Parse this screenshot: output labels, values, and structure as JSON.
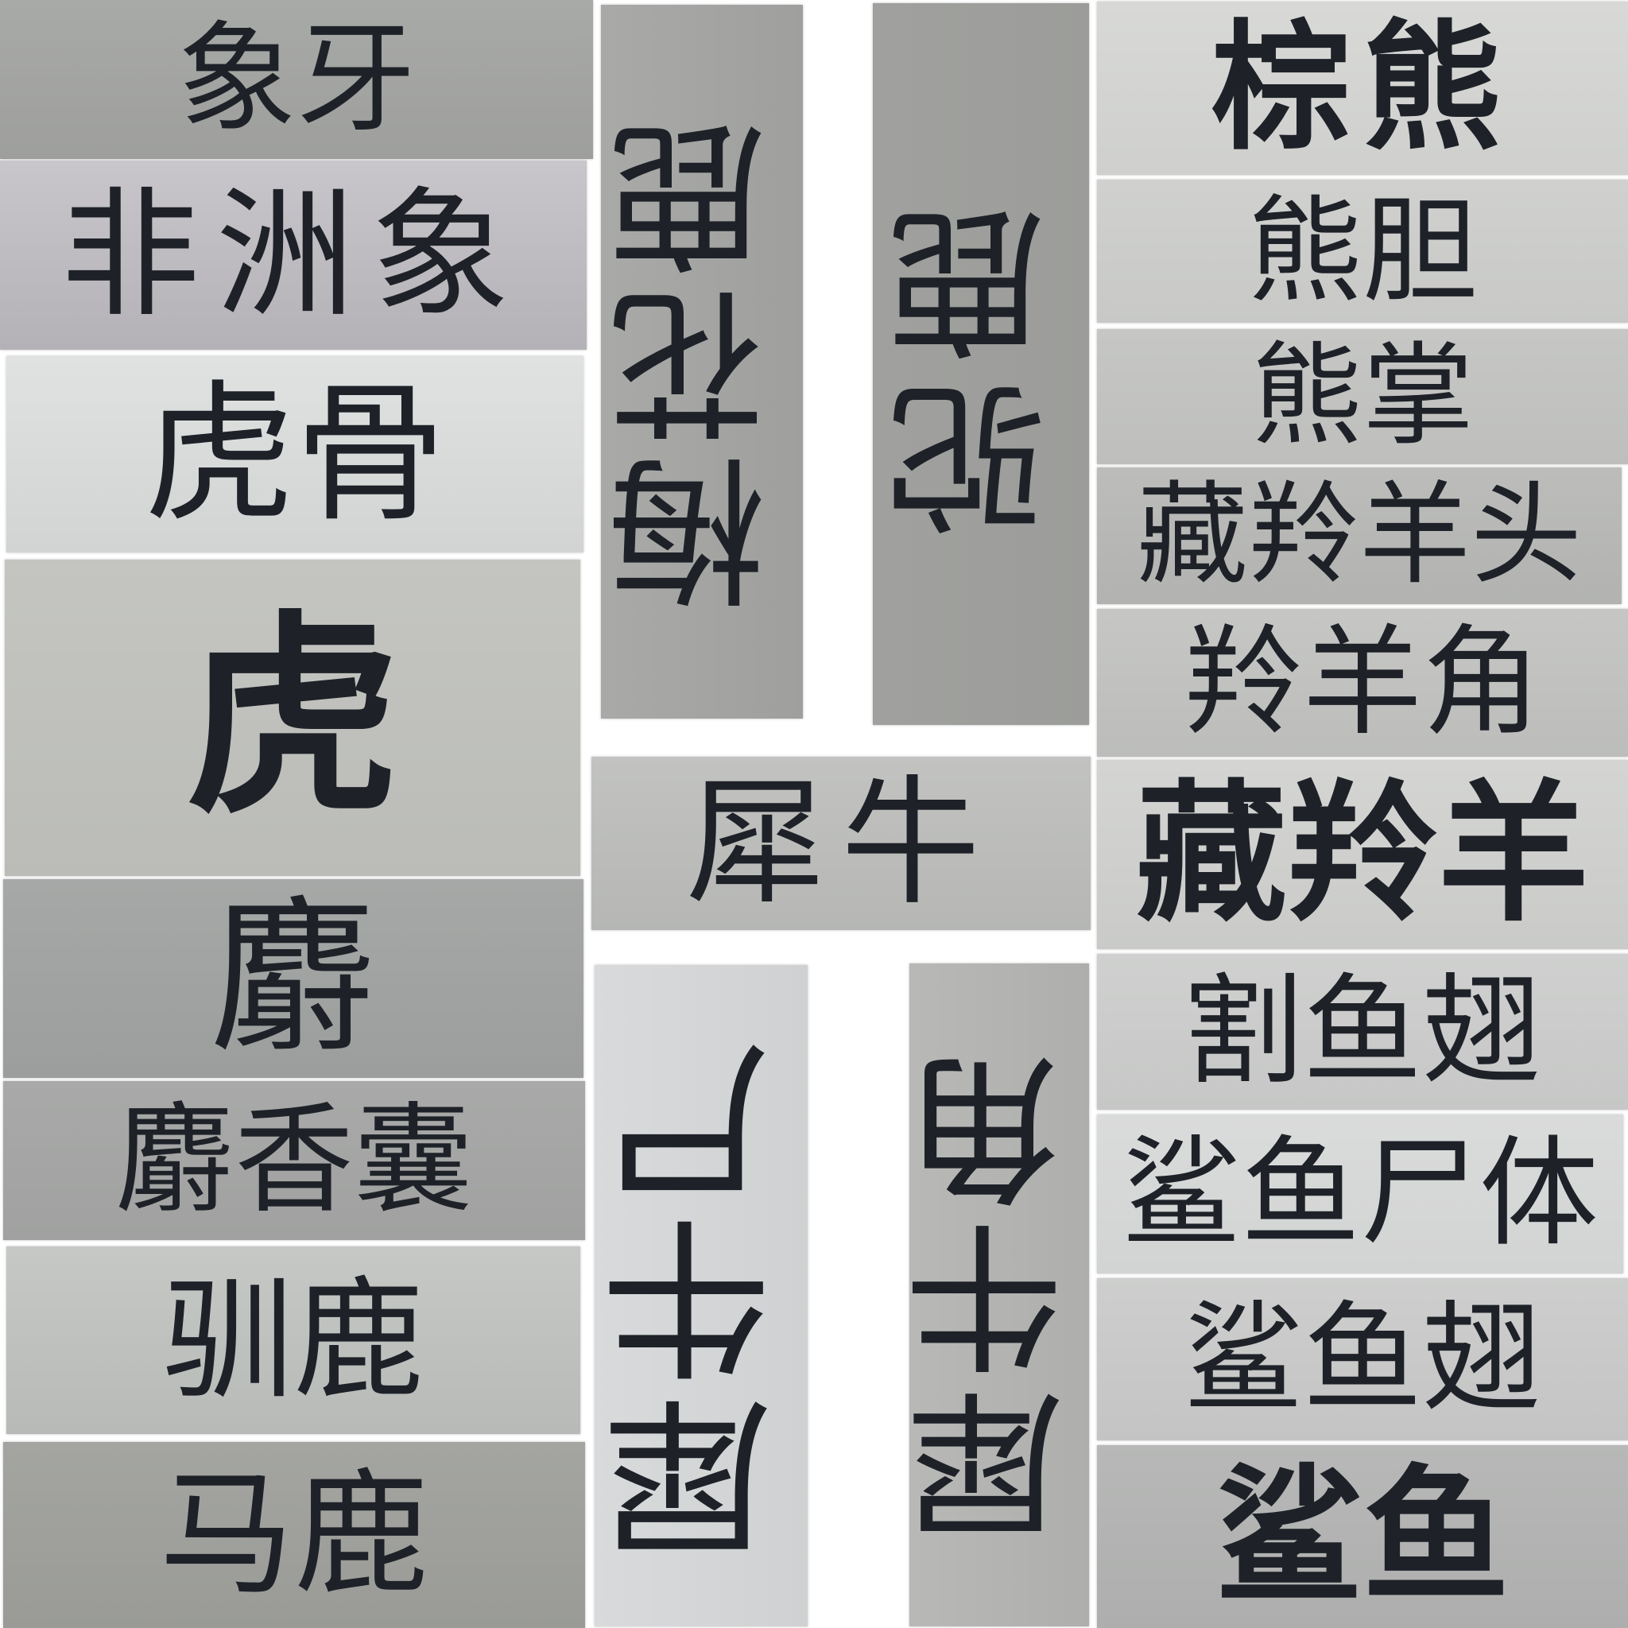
{
  "labels": {
    "ivory": "象牙",
    "african_elephant": "非洲象",
    "tiger_bone": "虎骨",
    "tiger": "虎",
    "musk_deer": "麝",
    "musk_pod": "麝香囊",
    "reindeer": "驯鹿",
    "red_deer": "马鹿",
    "sika_deer": "梅花鹿",
    "pere_david_deer": "驼鹿",
    "brown_bear": "棕熊",
    "bear_bile": "熊胆",
    "bear_paw": "熊掌",
    "tibetan_antelope_head": "藏羚羊头",
    "antelope_horn": "羚羊角",
    "rhinoceros": "犀牛",
    "tibetan_antelope": "藏羚羊",
    "rhino_hind_foot_left": "犀牛尸",
    "rhino_horn": "犀牛角",
    "cut_shark_fin": "割鱼翅",
    "shark_carcass": "鲨鱼尸体",
    "shark_fin": "鲨鱼翅",
    "shark": "鲨鱼"
  },
  "colors": {
    "ink": "#1e2228",
    "panel_light": "#d4d6d8",
    "panel_mid": "#aeb0b1",
    "panel_dark": "#9b9d9c"
  }
}
